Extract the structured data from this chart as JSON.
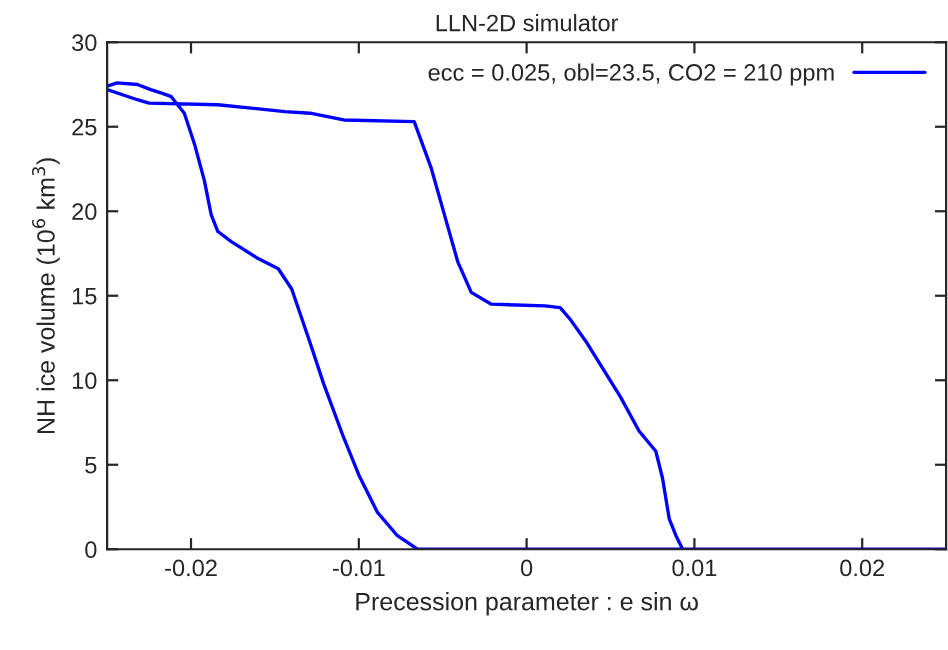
{
  "chart_data": {
    "type": "line",
    "title": "LLN-2D simulator",
    "xlabel": "Precession parameter : e sin ω",
    "ylabel": "NH ice volume (10$^{6}$ km$^{3}$)",
    "xlim": [
      -0.025,
      0.025
    ],
    "xticks": [
      -0.02,
      -0.01,
      0,
      0.01,
      0.02
    ],
    "ylim": [
      0,
      30
    ],
    "yticks": [
      0,
      5,
      10,
      15,
      20,
      25,
      30
    ],
    "grid": false,
    "legend": "top right",
    "marker": "none",
    "line_style": "solid",
    "series": [
      {
        "name": "ecc = 0.025, obl=23.5, CO2 = 210 ppm",
        "color": "#0000ff",
        "x": [
          -0.025,
          -0.0232,
          -0.0225,
          -0.0184,
          -0.0144,
          -0.0129,
          -0.0109,
          -0.0067,
          -0.0057,
          -0.0049,
          -0.0041,
          -0.0033,
          -0.0021,
          0.0011,
          0.002,
          0.0026,
          0.0036,
          0.0056,
          0.0067,
          0.0077,
          0.0081,
          0.0085,
          0.0089,
          0.0093,
          0.025,
          -0.0065,
          -0.0077,
          -0.0089,
          -0.01,
          -0.0109,
          -0.0121,
          -0.0129,
          -0.014,
          -0.0148,
          -0.016,
          -0.0176,
          -0.0184,
          -0.0188,
          -0.0192,
          -0.0198,
          -0.0204,
          -0.0212,
          -0.0218,
          -0.0224,
          -0.0232,
          -0.0244,
          -0.025
        ],
        "values": [
          27.2,
          26.6,
          26.4,
          26.3,
          25.9,
          25.8,
          25.4,
          25.3,
          22.6,
          19.8,
          17,
          15.2,
          14.5,
          14.4,
          14.3,
          13.6,
          12.2,
          9,
          7,
          5.8,
          4.2,
          1.8,
          0.8,
          0,
          0,
          0,
          0.8,
          2.2,
          4.4,
          6.6,
          9.8,
          12.2,
          15.4,
          16.6,
          17.2,
          18.2,
          18.8,
          19.8,
          21.8,
          24,
          25.8,
          26.8,
          27,
          27.2,
          27.5,
          27.6,
          27.4
        ]
      }
    ]
  }
}
